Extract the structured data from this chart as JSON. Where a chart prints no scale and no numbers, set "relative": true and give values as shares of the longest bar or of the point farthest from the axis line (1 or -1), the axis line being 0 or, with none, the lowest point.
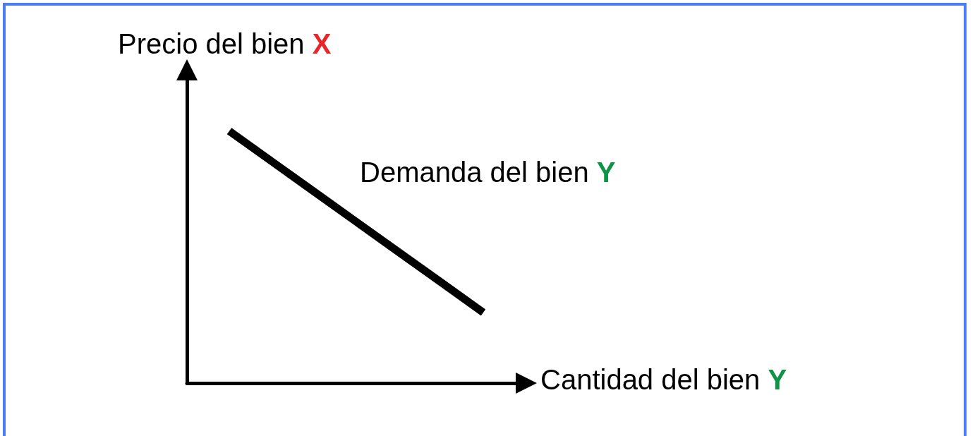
{
  "chart_data": {
    "type": "line",
    "relative": true,
    "xlabel": "Cantidad del bien Y",
    "ylabel": "Precio del bien X",
    "categories": [
      null,
      null,
      null,
      null,
      null,
      null,
      null,
      null,
      null
    ],
    "series": [
      {
        "name": "Demanda del bien Y",
        "color": "#000000",
        "values": [
          null,
          1,
          0.88,
          0.76,
          0.64,
          0.52,
          0.4,
          0.28,
          null
        ]
      }
    ],
    "marker": "none"
  }
}
